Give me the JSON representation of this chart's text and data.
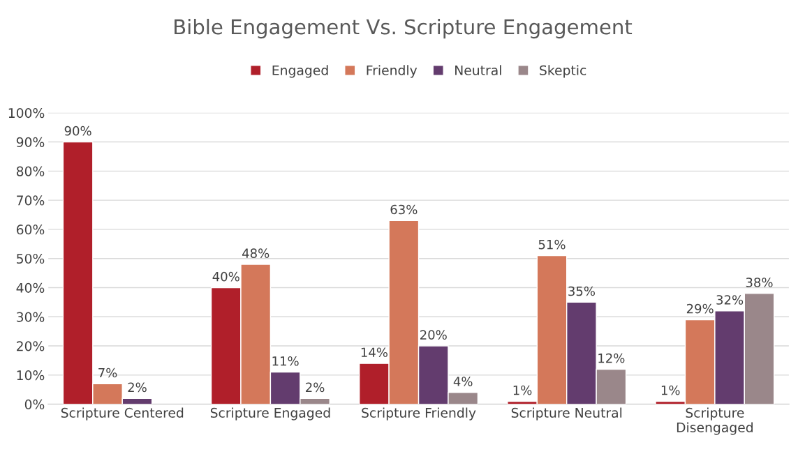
{
  "chart_data": {
    "type": "bar",
    "title": "Bible Engagement Vs. Scripture Engagement",
    "categories": [
      "Scripture Centered",
      "Scripture Engaged",
      "Scripture Friendly",
      "Scripture Neutral",
      "Scripture\nDisengaged"
    ],
    "series": [
      {
        "name": "Engaged",
        "color": "#b01f2a",
        "values": [
          90,
          40,
          14,
          1,
          1
        ],
        "value_labels": [
          "90%",
          "40%",
          "14%",
          "1%",
          "1%"
        ]
      },
      {
        "name": "Friendly",
        "color": "#d4785a",
        "values": [
          7,
          48,
          63,
          51,
          29
        ],
        "value_labels": [
          "7%",
          "48%",
          "63%",
          "51%",
          "29%"
        ]
      },
      {
        "name": "Neutral",
        "color": "#633c6e",
        "values": [
          2,
          11,
          20,
          35,
          32
        ],
        "value_labels": [
          "2%",
          "11%",
          "20%",
          "35%",
          "32%"
        ]
      },
      {
        "name": "Skeptic",
        "color": "#9a878a",
        "values": [
          null,
          2,
          4,
          12,
          38
        ],
        "value_labels": [
          null,
          "2%",
          "4%",
          "12%",
          "38%"
        ]
      }
    ],
    "ylim": [
      0,
      100
    ],
    "yticks": [
      {
        "value": 0,
        "label": "0%"
      },
      {
        "value": 10,
        "label": "10%"
      },
      {
        "value": 20,
        "label": "20%"
      },
      {
        "value": 30,
        "label": "30%"
      },
      {
        "value": 40,
        "label": "40%"
      },
      {
        "value": 50,
        "label": "50%"
      },
      {
        "value": 60,
        "label": "60%"
      },
      {
        "value": 70,
        "label": "70%"
      },
      {
        "value": 80,
        "label": "80%"
      },
      {
        "value": 90,
        "label": "90%"
      },
      {
        "value": 100,
        "label": "100%"
      }
    ],
    "grid": "y",
    "legend": "top"
  }
}
